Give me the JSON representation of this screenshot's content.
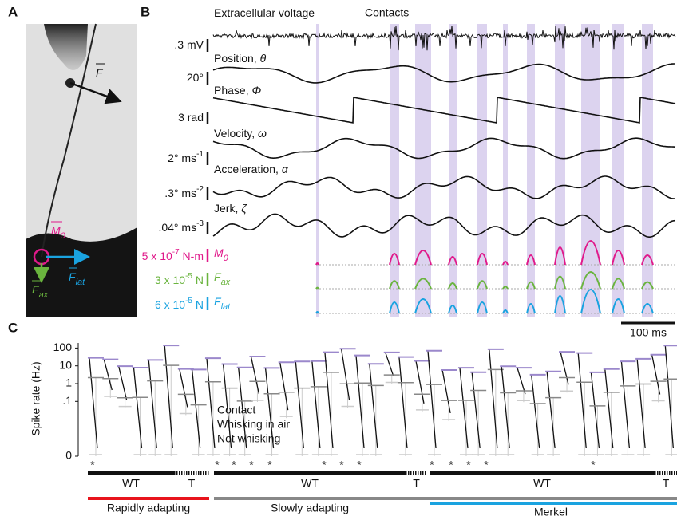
{
  "panel_a": {
    "label": "A",
    "force": {
      "symbol": "F"
    },
    "moment": {
      "symbol": "M",
      "sub": "0"
    },
    "axial": {
      "symbol": "F",
      "sub": "ax"
    },
    "lateral": {
      "symbol": "F",
      "sub": "lat"
    }
  },
  "panel_b": {
    "label": "B",
    "contacts_label": "Contacts",
    "traces": [
      {
        "name": "Extracellular voltage",
        "scale": ".3 mV"
      },
      {
        "name": "Position, ",
        "symbol": "θ",
        "scale": "20°"
      },
      {
        "name": "Phase, ",
        "symbol": "Φ",
        "scale": "3 rad"
      },
      {
        "name": "Velocity, ",
        "symbol": "ω",
        "scale": "2° ms",
        "exp": "-1"
      },
      {
        "name": "Acceleration, ",
        "symbol": "α",
        "scale": ".3° ms",
        "exp": "-2"
      },
      {
        "name": "Jerk, ",
        "symbol": "ζ",
        "scale": ".04° ms",
        "exp": "-3"
      }
    ],
    "forces": [
      {
        "scale": "5 x 10",
        "exp": "-7",
        "unit": " N-m",
        "symbol": "M",
        "sub": "0"
      },
      {
        "scale": "3 x 10",
        "exp": "-5",
        "unit": " N",
        "symbol": "F",
        "sub": "ax"
      },
      {
        "scale": "6 x 10",
        "exp": "-5",
        "unit": " N",
        "symbol": "F",
        "sub": "lat"
      }
    ],
    "scale_bar": "100 ms"
  },
  "panel_c": {
    "label": "C",
    "y_label": "Spike rate (Hz)",
    "yticks": [
      100,
      10,
      1,
      {
        "value": 0.1,
        "label": ".1"
      },
      0
    ],
    "legend": [
      "Contact",
      "Whisking in air",
      "Not whisking"
    ],
    "asterisks": [
      "*",
      "*",
      "*",
      "*",
      "*",
      "*",
      "*",
      "*",
      "*",
      "*",
      "*",
      "*",
      "*"
    ],
    "groups": [
      "WT",
      "T",
      "WT",
      "T",
      "WT",
      "T"
    ],
    "classes": [
      "Rapidly adapting",
      "Slowly adapting",
      "Merkel"
    ]
  }
}
